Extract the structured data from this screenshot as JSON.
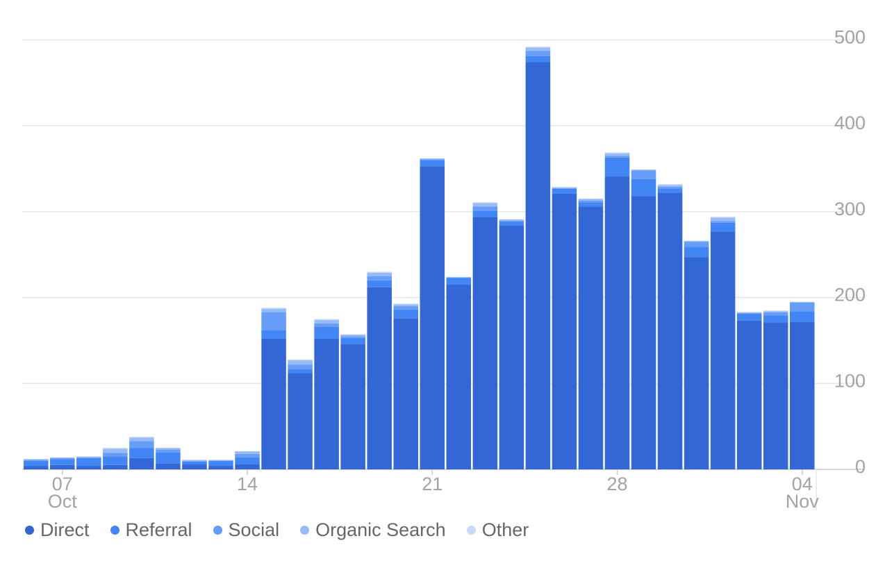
{
  "chart_data": {
    "type": "bar",
    "stacked": true,
    "y_axis": {
      "ticks": [
        0,
        100,
        200,
        300,
        400,
        500
      ],
      "ylim": [
        0,
        510
      ],
      "side": "right"
    },
    "x_axis": {
      "tick_labels": [
        {
          "label": "07",
          "sublabel": "Oct",
          "index": 1
        },
        {
          "label": "14",
          "sublabel": "",
          "index": 8
        },
        {
          "label": "21",
          "sublabel": "",
          "index": 15
        },
        {
          "label": "28",
          "sublabel": "",
          "index": 22
        },
        {
          "label": "04",
          "sublabel": "Nov",
          "index": 29
        }
      ]
    },
    "categories": [
      "Oct 06",
      "Oct 07",
      "Oct 08",
      "Oct 09",
      "Oct 10",
      "Oct 11",
      "Oct 12",
      "Oct 13",
      "Oct 14",
      "Oct 15",
      "Oct 16",
      "Oct 17",
      "Oct 18",
      "Oct 19",
      "Oct 20",
      "Oct 21",
      "Oct 22",
      "Oct 23",
      "Oct 24",
      "Oct 25",
      "Oct 26",
      "Oct 27",
      "Oct 28",
      "Oct 29",
      "Oct 30",
      "Oct 31",
      "Nov 01",
      "Nov 02",
      "Nov 03",
      "Nov 04"
    ],
    "series": [
      {
        "name": "Direct",
        "color": "#3367d6",
        "values": [
          4,
          5,
          4,
          5,
          13,
          7,
          6,
          4,
          6,
          152,
          112,
          152,
          146,
          212,
          176,
          353,
          215,
          294,
          284,
          474,
          321,
          306,
          341,
          318,
          322,
          247,
          277,
          173,
          171,
          172
        ]
      },
      {
        "name": "Referral",
        "color": "#4285f4",
        "values": [
          6,
          7,
          9,
          10,
          12,
          13,
          3,
          6,
          8,
          10,
          5,
          14,
          7,
          8,
          10,
          7,
          8,
          7,
          5,
          7,
          6,
          5,
          22,
          20,
          5,
          12,
          10,
          8,
          8,
          12
        ]
      },
      {
        "name": "Social",
        "color": "#679df6",
        "values": [
          1,
          1,
          1,
          4,
          8,
          3,
          1,
          0,
          4,
          21,
          5,
          4,
          2,
          5,
          4,
          1,
          0,
          5,
          0,
          6,
          0,
          2,
          2,
          10,
          2,
          6,
          2,
          1,
          4,
          10
        ]
      },
      {
        "name": "Organic Search",
        "color": "#97bbf7",
        "values": [
          1,
          1,
          1,
          5,
          4,
          2,
          1,
          1,
          3,
          4,
          5,
          4,
          2,
          4,
          2,
          1,
          1,
          4,
          2,
          4,
          1,
          2,
          3,
          1,
          2,
          1,
          4,
          1,
          1,
          1
        ]
      },
      {
        "name": "Other",
        "color": "#c6dafc",
        "values": [
          0,
          0,
          0,
          1,
          1,
          0,
          0,
          0,
          0,
          1,
          1,
          1,
          0,
          1,
          1,
          0,
          0,
          1,
          0,
          1,
          1,
          0,
          1,
          0,
          1,
          0,
          1,
          0,
          1,
          0
        ]
      }
    ],
    "grid": true,
    "legend": "bottom-left"
  }
}
